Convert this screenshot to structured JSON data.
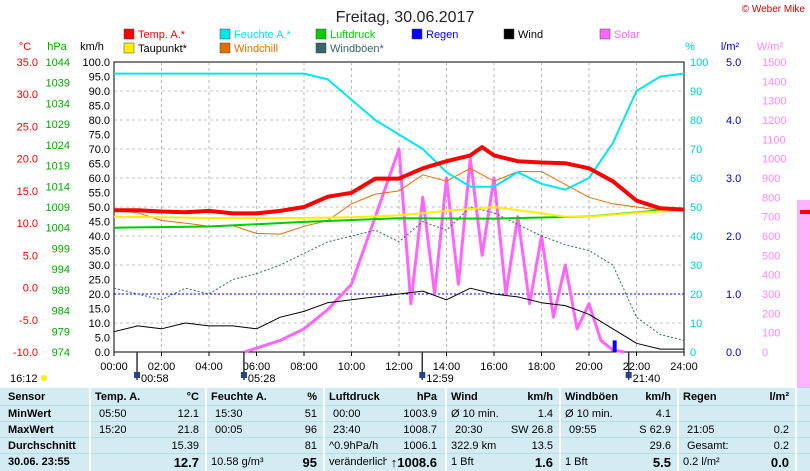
{
  "chart_data": {
    "type": "line",
    "title": "Freitag, 30.06.2017",
    "credit": "© Weber Mike",
    "x_ticks": [
      "00:00",
      "02:00",
      "04:00",
      "06:00",
      "08:00",
      "10:00",
      "12:00",
      "14:00",
      "16:00",
      "18:00",
      "20:00",
      "22:00",
      "24:00"
    ],
    "legend": [
      {
        "name": "Temp. A.*",
        "color": "#ff0000"
      },
      {
        "name": "Feuchte A.*",
        "color": "#00e5ee"
      },
      {
        "name": "Luftdruck",
        "color": "#00cc00"
      },
      {
        "name": "Regen",
        "color": "#0000ff"
      },
      {
        "name": "Wind",
        "color": "#000000"
      },
      {
        "name": "Solar",
        "color": "#ff66ff"
      },
      {
        "name": "Taupunkt*",
        "color": "#ffee00"
      },
      {
        "name": "Windchill",
        "color": "#e07000"
      },
      {
        "name": "Windböen*",
        "color": "#336666"
      }
    ],
    "axes": {
      "temp": {
        "label": "°C",
        "min": -10,
        "max": 35,
        "ticks": [
          "35.0",
          "30.0",
          "25.0",
          "20.0",
          "15.0",
          "10.0",
          "5.0",
          "0.0",
          "-5.0",
          "-10.0"
        ],
        "color": "#ff0000"
      },
      "pressure": {
        "label": "hPa",
        "min": 974,
        "max": 1044,
        "ticks": [
          "1044",
          "1039",
          "1034",
          "1029",
          "1024",
          "1019",
          "1014",
          "1009",
          "1004",
          "999",
          "994",
          "989",
          "984",
          "979",
          "974"
        ],
        "color": "#00aa00"
      },
      "wind": {
        "label": "km/h",
        "min": 0,
        "max": 100,
        "ticks": [
          "100.0",
          "95.0",
          "90.0",
          "85.0",
          "80.0",
          "75.0",
          "70.0",
          "65.0",
          "60.0",
          "55.0",
          "50.0",
          "45.0",
          "40.0",
          "35.0",
          "30.0",
          "25.0",
          "20.0",
          "15.0",
          "10.0",
          "5.0",
          "0.0"
        ],
        "color": "#000000"
      },
      "humidity": {
        "label": "%",
        "min": 0,
        "max": 100,
        "ticks": [
          "100",
          "90",
          "80",
          "70",
          "60",
          "50",
          "40",
          "30",
          "20",
          "10",
          "0"
        ],
        "color": "#00cccc"
      },
      "rain": {
        "label": "l/m²",
        "min": 0,
        "max": 5,
        "ticks": [
          "5.0",
          "4.0",
          "3.0",
          "2.0",
          "1.0",
          "0.0"
        ],
        "color": "#0000cc"
      },
      "solar": {
        "label": "W/m²",
        "min": 0,
        "max": 1500,
        "ticks": [
          "1500",
          "1400",
          "1300",
          "1200",
          "1100",
          "1000",
          "900",
          "800",
          "700",
          "600",
          "500",
          "400",
          "300",
          "200",
          "100",
          "0"
        ],
        "color": "#ff66ff"
      }
    },
    "series": [
      {
        "name": "Temp. A.*",
        "axis": "temp",
        "x": [
          0,
          1,
          2,
          3,
          4,
          5,
          6,
          7,
          8,
          9,
          10,
          11,
          12,
          13,
          14,
          15,
          15.5,
          16,
          17,
          18,
          19,
          20,
          21,
          22,
          23,
          24
        ],
        "y": [
          12.0,
          12.0,
          11.8,
          11.7,
          11.9,
          11.5,
          11.5,
          11.9,
          12.5,
          14.1,
          14.7,
          16.9,
          16.9,
          18.5,
          19.6,
          20.5,
          21.8,
          20.5,
          19.6,
          19.4,
          19.3,
          18.5,
          16.5,
          13.5,
          12.3,
          12.1
        ]
      },
      {
        "name": "Taupunkt*",
        "axis": "temp",
        "x": [
          0,
          2,
          4,
          6,
          8,
          10,
          12,
          14,
          16,
          18,
          19,
          20,
          22,
          24
        ],
        "y": [
          11.0,
          10.9,
          10.8,
          10.8,
          10.8,
          10.9,
          11.2,
          11.9,
          12.5,
          11.5,
          11.0,
          11.0,
          11.6,
          12.0
        ]
      },
      {
        "name": "Windchill",
        "axis": "temp",
        "x": [
          0,
          1,
          2,
          3,
          4,
          5,
          6,
          7,
          8,
          9,
          10,
          11,
          12,
          13,
          14,
          15,
          16,
          17,
          18,
          19,
          20,
          21,
          22,
          23,
          24
        ],
        "y": [
          12.0,
          11.6,
          10.4,
          10.0,
          9.5,
          9.6,
          8.4,
          8.3,
          9.5,
          10.4,
          13.0,
          14.5,
          15.0,
          17.5,
          16.5,
          18.5,
          16.5,
          18.0,
          18.0,
          16.0,
          14.0,
          13.0,
          12.5,
          12.0,
          12.0
        ]
      },
      {
        "name": "Feuchte A.*",
        "axis": "humidity",
        "x": [
          0,
          2,
          4,
          6,
          8,
          9,
          10,
          11,
          12,
          13,
          14,
          15,
          16,
          17,
          18,
          19,
          20,
          21,
          22,
          23,
          24
        ],
        "y": [
          96,
          96,
          96,
          96,
          96,
          94,
          87,
          80,
          75,
          70,
          62,
          57,
          57,
          62,
          58,
          56,
          60,
          72,
          90,
          95,
          96
        ]
      },
      {
        "name": "Luftdruck",
        "axis": "pressure",
        "x": [
          0,
          4,
          8,
          12,
          16,
          20,
          24
        ],
        "y": [
          1004.0,
          1004.3,
          1005.4,
          1006.3,
          1006.2,
          1006.7,
          1008.7
        ]
      },
      {
        "name": "Wind",
        "axis": "wind",
        "x": [
          0,
          1,
          2,
          3,
          4,
          5,
          6,
          7,
          8,
          9,
          10,
          11,
          12,
          13,
          14,
          15,
          16,
          17,
          18,
          19,
          20,
          21,
          22,
          23,
          24
        ],
        "y": [
          7,
          9,
          8,
          10,
          9,
          9,
          8,
          12,
          14,
          17,
          18,
          19,
          20,
          21,
          18,
          22,
          20,
          19,
          17,
          16,
          13,
          8,
          3,
          1,
          1
        ]
      },
      {
        "name": "Windböen*",
        "axis": "wind",
        "x": [
          0,
          1,
          2,
          3,
          4,
          5,
          6,
          7,
          8,
          9,
          10,
          11,
          12,
          13,
          14,
          15,
          16,
          17,
          18,
          19,
          20,
          21,
          22,
          23,
          24
        ],
        "y": [
          22,
          20,
          18,
          22,
          20,
          25,
          27,
          30,
          34,
          38,
          40,
          42,
          38,
          45,
          42,
          50,
          48,
          44,
          40,
          37,
          35,
          30,
          12,
          6,
          4
        ]
      },
      {
        "name": "Solar",
        "axis": "solar",
        "x": [
          5.5,
          6,
          7,
          8,
          9,
          10,
          11,
          12,
          12.5,
          13,
          13.5,
          14,
          14.5,
          15,
          15.5,
          16,
          16.5,
          17,
          17.5,
          18,
          18.5,
          19,
          19.5,
          20,
          20.5,
          21,
          21.5
        ],
        "y": [
          0,
          20,
          60,
          120,
          220,
          350,
          700,
          1050,
          250,
          800,
          300,
          900,
          350,
          1000,
          500,
          900,
          300,
          700,
          250,
          600,
          180,
          450,
          120,
          250,
          60,
          10,
          0
        ]
      }
    ],
    "marks": [
      {
        "label": "16:12",
        "x": null,
        "anchor": "left"
      },
      {
        "label": "00:58",
        "x": 0.97
      },
      {
        "label": "05:28",
        "x": 5.47
      },
      {
        "label": "12:59",
        "x": 12.98
      },
      {
        "label": "21:40",
        "x": 21.67
      }
    ]
  },
  "stats": {
    "row_labels": [
      "Sensor",
      "MinWert",
      "MaxWert",
      "Durchschnitt",
      "30.06. 23:55"
    ],
    "temp": {
      "header": "Temp. A.",
      "unit": "°C",
      "rows": [
        [
          "05:50",
          "12.1"
        ],
        [
          "15:20",
          "21.8"
        ],
        [
          "",
          "15.39"
        ],
        [
          "",
          "12.7"
        ]
      ]
    },
    "humidity": {
      "header": "Feuchte A.",
      "unit": "%",
      "rows": [
        [
          "15:30",
          "51"
        ],
        [
          "00:05",
          "96"
        ],
        [
          "",
          "81"
        ],
        [
          "10.58 g/m³",
          "95"
        ]
      ]
    },
    "pressure": {
      "header": "Luftdruck",
      "unit": "hPa",
      "rows": [
        [
          "00:00",
          "1003.9"
        ],
        [
          "23:40",
          "1008.7"
        ],
        [
          "^0.9hPa/h",
          "1006.1"
        ],
        [
          "veränderlich",
          "↑1008.6"
        ]
      ]
    },
    "wind": {
      "header": "Wind",
      "unit": "km/h",
      "rows": [
        [
          "Ø 10 min.",
          "1.4"
        ],
        [
          "20:30",
          "SW 26.8"
        ],
        [
          "322.9 km",
          "13.5"
        ],
        [
          "1 Bft",
          "1.6"
        ]
      ]
    },
    "gusts": {
      "header": "Windböen",
      "unit": "km/h",
      "rows": [
        [
          "Ø 10 min.",
          "4.1"
        ],
        [
          "09:55",
          "S 62.9"
        ],
        [
          "",
          "29.6"
        ],
        [
          "1 Bft",
          "5.5"
        ]
      ]
    },
    "rain": {
      "header": "Regen",
      "unit": "l/m²",
      "rows": [
        [
          "",
          ""
        ],
        [
          "21:05",
          "0.2"
        ],
        [
          "Gesamt:",
          "0.2"
        ],
        [
          "0.2 l/m²",
          "0.0"
        ]
      ]
    }
  }
}
